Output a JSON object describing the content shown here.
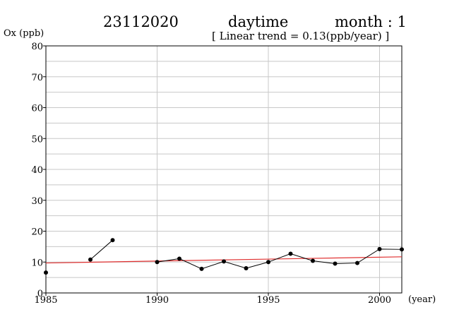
{
  "header": {
    "station": "23112020",
    "period": "daytime",
    "month": "month : 1",
    "trend": "[ Linear trend = 0.13(ppb/year) ]"
  },
  "chart_data": {
    "type": "line",
    "title": "",
    "ylabel": "Ox (ppb)",
    "xlabel": "(year)",
    "xlim": [
      1985,
      2001
    ],
    "ylim": [
      0,
      80
    ],
    "x_ticks": [
      1985,
      1990,
      1995,
      2000
    ],
    "y_ticks": [
      0,
      10,
      20,
      30,
      40,
      50,
      60,
      70,
      80
    ],
    "grid": true,
    "series": [
      {
        "color": "#000000",
        "segments": [
          [
            [
              1985,
              6.6
            ]
          ],
          [
            [
              1987,
              10.8
            ],
            [
              1988,
              17.1
            ]
          ],
          [
            [
              1990,
              10.0
            ],
            [
              1991,
              11.1
            ],
            [
              1992,
              7.8
            ],
            [
              1993,
              10.2
            ],
            [
              1994,
              8.0
            ],
            [
              1995,
              10.0
            ],
            [
              1996,
              12.7
            ],
            [
              1997,
              10.4
            ],
            [
              1998,
              9.5
            ],
            [
              1999,
              9.7
            ],
            [
              2000,
              14.2
            ],
            [
              2001,
              14.1
            ]
          ]
        ]
      }
    ],
    "trend_line": {
      "color": "#e03030",
      "points": [
        [
          1985,
          9.7
        ],
        [
          2001,
          11.7
        ]
      ]
    }
  }
}
